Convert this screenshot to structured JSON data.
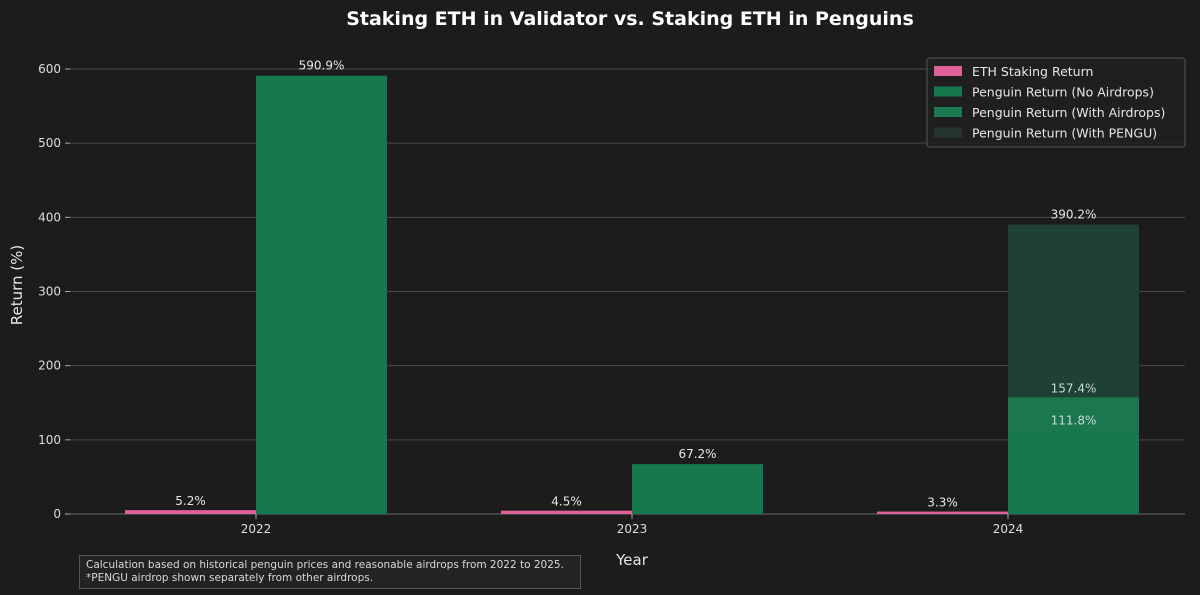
{
  "chart_data": {
    "type": "bar",
    "title": "Staking ETH in Validator vs. Staking ETH in Penguins",
    "xlabel": "Year",
    "ylabel": "Return (%)",
    "categories": [
      "2022",
      "2023",
      "2024"
    ],
    "ylim": [
      0,
      640
    ],
    "yticks": [
      0,
      100,
      200,
      300,
      400,
      500,
      600
    ],
    "grid": true,
    "legend_position": "top-right",
    "series": [
      {
        "name": "ETH Staking Return",
        "values": [
          5.2,
          4.5,
          3.3
        ],
        "labels": [
          "5.2%",
          "4.5%",
          "3.3%"
        ],
        "color": "#e0609a"
      },
      {
        "name": "Penguin Return (No Airdrops)",
        "values": [
          590.9,
          67.2,
          111.8
        ],
        "labels": [
          "590.9%",
          "67.2%",
          "111.8%"
        ],
        "color": "#15784e"
      },
      {
        "name": "Penguin Return (With Airdrops)",
        "values": [
          null,
          null,
          157.4
        ],
        "labels": [
          "",
          "",
          "157.4%"
        ],
        "color": "#1a7a52"
      },
      {
        "name": "Penguin Return (With PENGU)",
        "values": [
          null,
          null,
          390.2
        ],
        "labels": [
          "",
          "",
          "390.2%"
        ],
        "color": "#1f4034"
      }
    ]
  },
  "note": {
    "line1": "Calculation based on historical penguin prices and reasonable airdrops from 2022 to 2025.",
    "line2": "*PENGU airdrop shown separately from other airdrops."
  }
}
